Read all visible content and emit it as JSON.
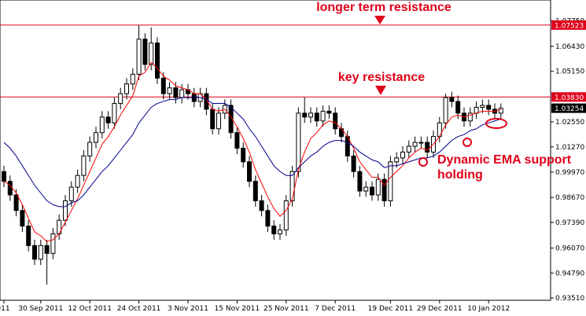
{
  "chart_data": {
    "type": "candlestick",
    "categories": [
      "011",
      null,
      null,
      null,
      null,
      null,
      "30 Sep 2011",
      null,
      null,
      null,
      null,
      null,
      null,
      null,
      "12 Oct 2011",
      null,
      null,
      null,
      null,
      null,
      null,
      null,
      "24 Oct 2011",
      null,
      null,
      null,
      null,
      null,
      null,
      null,
      "3 Nov 2011",
      null,
      null,
      null,
      null,
      null,
      null,
      null,
      "15 Nov 2011",
      null,
      null,
      null,
      null,
      null,
      null,
      null,
      "25 Nov 2011",
      null,
      null,
      null,
      null,
      null,
      null,
      null,
      "7 Dec 2011",
      null,
      null,
      null,
      null,
      null,
      null,
      null,
      null,
      "19 Dec 2011",
      null,
      null,
      null,
      null,
      null,
      null,
      null,
      "29 Dec 2011",
      null,
      null,
      null,
      null,
      null,
      null,
      null,
      "10 Jan 2012",
      null,
      null
    ],
    "open": [
      1.0,
      0.995,
      0.988,
      0.98,
      0.972,
      0.962,
      0.955,
      0.962,
      0.958,
      0.968,
      0.975,
      0.985,
      0.992,
      0.998,
      1.008,
      1.015,
      1.02,
      1.028,
      1.025,
      1.035,
      1.04,
      1.045,
      1.05,
      1.068,
      1.055,
      1.066,
      1.048,
      1.04,
      1.043,
      1.038,
      1.042,
      1.04,
      1.036,
      1.04,
      1.032,
      1.022,
      1.03,
      1.034,
      1.02,
      1.012,
      1.005,
      0.995,
      0.985,
      0.98,
      0.972,
      0.968,
      0.97,
      0.985,
      1.0,
      1.03,
      1.028,
      1.03,
      1.026,
      1.031,
      1.03,
      1.022,
      1.018,
      1.008,
      1.0,
      0.99,
      0.992,
      0.988,
      0.996,
      0.985,
      1.005,
      1.007,
      1.01,
      1.013,
      1.015,
      1.015,
      1.01,
      1.018,
      1.025,
      1.038,
      1.036,
      1.03,
      1.026,
      1.03,
      1.033,
      1.034,
      1.032,
      1.03
    ],
    "high": [
      1.003,
      0.998,
      0.991,
      0.983,
      0.975,
      0.965,
      0.965,
      0.965,
      0.971,
      0.978,
      0.988,
      0.995,
      1.001,
      1.011,
      1.018,
      1.023,
      1.031,
      1.031,
      1.038,
      1.043,
      1.048,
      1.053,
      1.075,
      1.071,
      1.074,
      1.069,
      1.051,
      1.046,
      1.046,
      1.045,
      1.045,
      1.043,
      1.043,
      1.043,
      1.035,
      1.033,
      1.037,
      1.037,
      1.023,
      1.015,
      1.008,
      0.998,
      0.988,
      0.983,
      0.975,
      0.973,
      0.988,
      1.003,
      1.033,
      1.038,
      1.033,
      1.033,
      1.034,
      1.034,
      1.033,
      1.025,
      1.021,
      1.011,
      1.003,
      0.995,
      0.995,
      0.999,
      0.999,
      1.008,
      1.01,
      1.013,
      1.016,
      1.018,
      1.018,
      1.018,
      1.021,
      1.028,
      1.04,
      1.041,
      1.039,
      1.033,
      1.033,
      1.036,
      1.037,
      1.037,
      1.035,
      1.035
    ],
    "low": [
      0.992,
      0.985,
      0.977,
      0.969,
      0.959,
      0.952,
      0.952,
      0.942,
      0.955,
      0.965,
      0.972,
      0.982,
      0.989,
      0.995,
      1.005,
      1.012,
      1.017,
      1.022,
      1.022,
      1.032,
      1.037,
      1.042,
      1.047,
      1.052,
      1.052,
      1.045,
      1.037,
      1.037,
      1.035,
      1.035,
      1.037,
      1.033,
      1.033,
      1.029,
      1.019,
      1.019,
      1.027,
      1.017,
      1.009,
      1.002,
      0.992,
      0.982,
      0.977,
      0.969,
      0.965,
      0.965,
      0.967,
      0.982,
      0.997,
      1.025,
      1.025,
      1.023,
      1.023,
      1.027,
      1.019,
      1.015,
      1.005,
      0.997,
      0.987,
      0.987,
      0.985,
      0.985,
      0.982,
      0.982,
      1.002,
      1.004,
      1.007,
      1.01,
      1.012,
      1.007,
      1.007,
      1.015,
      1.022,
      1.033,
      1.027,
      1.023,
      1.023,
      1.027,
      1.03,
      1.029,
      1.027,
      1.027
    ],
    "close": [
      0.995,
      0.988,
      0.98,
      0.972,
      0.962,
      0.955,
      0.962,
      0.958,
      0.968,
      0.975,
      0.985,
      0.992,
      0.998,
      1.008,
      1.015,
      1.02,
      1.028,
      1.025,
      1.035,
      1.04,
      1.045,
      1.05,
      1.068,
      1.055,
      1.066,
      1.048,
      1.04,
      1.043,
      1.038,
      1.042,
      1.04,
      1.036,
      1.04,
      1.032,
      1.022,
      1.03,
      1.034,
      1.02,
      1.012,
      1.005,
      0.995,
      0.985,
      0.98,
      0.972,
      0.968,
      0.97,
      0.985,
      1.0,
      1.03,
      1.028,
      1.03,
      1.026,
      1.031,
      1.03,
      1.022,
      1.018,
      1.008,
      1.0,
      0.99,
      0.992,
      0.988,
      0.996,
      0.985,
      1.005,
      1.007,
      1.01,
      1.013,
      1.015,
      1.015,
      1.01,
      1.018,
      1.025,
      1.038,
      1.036,
      1.03,
      1.026,
      1.03,
      1.033,
      1.034,
      1.032,
      1.03,
      1.0325
    ],
    "series": [
      {
        "color": "#ff0000",
        "values": [
          0.995,
          0.993,
          0.989,
          0.983,
          0.976,
          0.969,
          0.967,
          0.964,
          0.965,
          0.968,
          0.974,
          0.98,
          0.986,
          0.993,
          1.0,
          1.007,
          1.014,
          1.018,
          1.023,
          1.029,
          1.034,
          1.039,
          1.049,
          1.051,
          1.056,
          1.053,
          1.049,
          1.047,
          1.044,
          1.043,
          1.042,
          1.04,
          1.04,
          1.037,
          1.032,
          1.031,
          1.032,
          1.028,
          1.023,
          1.017,
          1.01,
          1.001,
          0.994,
          0.987,
          0.981,
          0.977,
          0.98,
          0.986,
          1.001,
          1.01,
          1.017,
          1.02,
          1.024,
          1.026,
          1.025,
          1.022,
          1.018,
          1.012,
          1.005,
          1.001,
          0.997,
          0.997,
          0.993,
          0.997,
          1.0,
          1.003,
          1.007,
          1.01,
          1.012,
          1.011,
          1.014,
          1.018,
          1.024,
          1.028,
          1.029,
          1.028,
          1.029,
          1.03,
          1.031,
          1.031,
          1.031,
          1.032
        ]
      },
      {
        "color": "#00008b",
        "values": [
          1.015,
          1.012,
          1.008,
          1.003,
          0.998,
          0.993,
          0.989,
          0.985,
          0.983,
          0.982,
          0.982,
          0.984,
          0.985,
          0.988,
          0.992,
          0.996,
          1.0,
          1.003,
          1.007,
          1.011,
          1.015,
          1.019,
          1.025,
          1.029,
          1.033,
          1.035,
          1.036,
          1.037,
          1.037,
          1.038,
          1.038,
          1.038,
          1.038,
          1.037,
          1.035,
          1.035,
          1.035,
          1.033,
          1.03,
          1.027,
          1.022,
          1.018,
          1.013,
          1.008,
          1.003,
          1.0,
          0.998,
          0.998,
          1.002,
          1.005,
          1.008,
          1.01,
          1.013,
          1.015,
          1.016,
          1.016,
          1.015,
          1.013,
          1.01,
          1.008,
          1.006,
          1.005,
          1.002,
          1.003,
          1.003,
          1.004,
          1.005,
          1.006,
          1.007,
          1.007,
          1.008,
          1.01,
          1.013,
          1.016,
          1.018,
          1.019,
          1.021,
          1.022,
          1.024,
          1.025,
          1.026,
          1.027
        ]
      }
    ],
    "up_color": "#ffffff",
    "down_color": "#000000",
    "levels": [
      {
        "value": 1.07523,
        "label": "1.07523"
      },
      {
        "value": 1.0383,
        "label": "1.03830"
      }
    ],
    "level_color": "#e0001a",
    "current_price": {
      "value": 1.03254,
      "label": "1.03254"
    },
    "annotations": [
      "longer term resistance",
      "key resistance",
      "Dynamic EMA support",
      "holding"
    ],
    "ylim": [
      0.9339,
      1.0881
    ],
    "yticks": [
      {
        "value": 1.0775,
        "label": "1.07750"
      },
      {
        "value": 1.0643,
        "label": "1.06430"
      },
      {
        "value": 1.0515,
        "label": "1.05150"
      },
      {
        "value": 1.0255,
        "label": "1.02550"
      },
      {
        "value": 1.0127,
        "label": "1.01270"
      },
      {
        "value": 0.9997,
        "label": "0.99970"
      },
      {
        "value": 0.9867,
        "label": "0.98670"
      },
      {
        "value": 0.9739,
        "label": "0.97390"
      },
      {
        "value": 0.9607,
        "label": "0.96070"
      },
      {
        "value": 0.9479,
        "label": "0.94790"
      },
      {
        "value": 0.9351,
        "label": "0.93510"
      }
    ]
  }
}
